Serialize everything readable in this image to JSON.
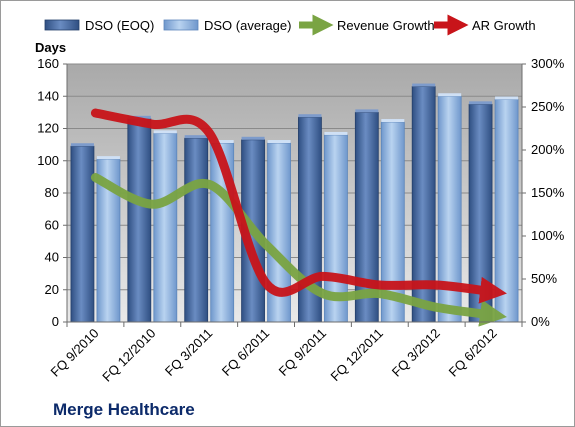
{
  "chart_data": {
    "type": "bar",
    "company": "Merge Healthcare",
    "ylabel": "Days",
    "categories": [
      "FQ 9/2010",
      "FQ 12/2010",
      "FQ 3/2011",
      "FQ 6/2011",
      "FQ 9/2011",
      "FQ 12/2011",
      "FQ 3/2012",
      "FQ 6/2012"
    ],
    "ylim": [
      0,
      160
    ],
    "yticks": [
      "0",
      "20",
      "40",
      "60",
      "80",
      "100",
      "120",
      "140",
      "160"
    ],
    "y2lim": [
      0,
      300
    ],
    "y2ticks": [
      "0%",
      "50%",
      "100%",
      "150%",
      "200%",
      "250%",
      "300%"
    ],
    "series": [
      {
        "name": "DSO (EOQ)",
        "type": "bar",
        "axis": "left",
        "color": "#4f6fa3",
        "values": [
          109,
          126,
          114,
          113,
          127,
          130,
          146,
          135
        ]
      },
      {
        "name": "DSO (average)",
        "type": "bar",
        "axis": "left",
        "color": "#8fb4e0",
        "values": [
          101,
          117,
          111,
          111,
          116,
          124,
          140,
          138
        ]
      },
      {
        "name": "Revenue Growth",
        "type": "line",
        "axis": "right",
        "color": "#7aa443",
        "values": [
          168,
          137,
          160,
          90,
          33,
          33,
          17,
          8
        ]
      },
      {
        "name": "AR Growth",
        "type": "line",
        "axis": "right",
        "color": "#c8141a",
        "values": [
          243,
          230,
          220,
          45,
          53,
          43,
          43,
          35
        ]
      }
    ],
    "grid": true,
    "legend": "top"
  }
}
